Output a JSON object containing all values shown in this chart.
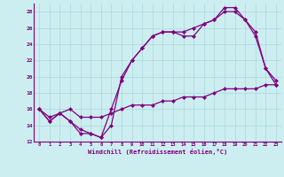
{
  "xlabel": "Windchill (Refroidissement éolien,°C)",
  "bg_color": "#cceef0",
  "line_color": "#800080",
  "grid_color": "#aad8dc",
  "xlim": [
    -0.5,
    23.5
  ],
  "ylim": [
    12,
    29
  ],
  "yticks": [
    12,
    14,
    16,
    18,
    20,
    22,
    24,
    26,
    28
  ],
  "xticks": [
    0,
    1,
    2,
    3,
    4,
    5,
    6,
    7,
    8,
    9,
    10,
    11,
    12,
    13,
    14,
    15,
    16,
    17,
    18,
    19,
    20,
    21,
    22,
    23
  ],
  "line1_x": [
    0,
    1,
    2,
    3,
    4,
    5,
    6,
    7,
    8,
    9,
    10,
    11,
    12,
    13,
    14,
    15,
    16,
    17,
    18,
    19,
    20,
    21,
    22,
    23
  ],
  "line1_y": [
    16,
    14.5,
    15.5,
    14.5,
    13,
    13,
    12.5,
    14,
    20,
    22,
    23.5,
    25,
    25.5,
    25.5,
    25,
    25,
    26.5,
    27,
    28,
    28,
    27,
    25,
    21,
    19
  ],
  "line2_x": [
    0,
    1,
    2,
    3,
    4,
    5,
    6,
    7,
    8,
    9,
    10,
    11,
    12,
    13,
    14,
    15,
    16,
    17,
    18,
    19,
    20,
    21,
    22,
    23
  ],
  "line2_y": [
    16,
    14.5,
    15.5,
    14.5,
    13.5,
    13,
    12.5,
    16,
    19.5,
    22,
    23.5,
    25,
    25.5,
    25.5,
    25.5,
    26,
    26.5,
    27,
    28.5,
    28.5,
    27,
    25.5,
    21,
    19.5
  ],
  "line3_x": [
    0,
    1,
    2,
    3,
    4,
    5,
    6,
    7,
    8,
    9,
    10,
    11,
    12,
    13,
    14,
    15,
    16,
    17,
    18,
    19,
    20,
    21,
    22,
    23
  ],
  "line3_y": [
    16,
    15,
    15.5,
    16,
    15,
    15,
    15,
    15.5,
    16,
    16.5,
    16.5,
    16.5,
    17,
    17,
    17.5,
    17.5,
    17.5,
    18,
    18.5,
    18.5,
    18.5,
    18.5,
    19,
    19
  ]
}
